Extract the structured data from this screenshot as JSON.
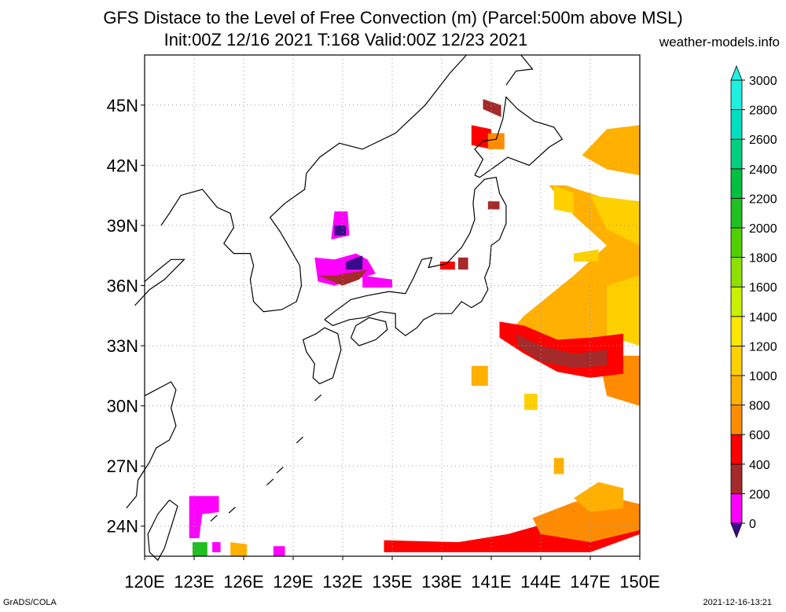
{
  "header": {
    "title_line1": "GFS Distace to the Level of Free Convection (m) (Parcel:500m above MSL)",
    "title_line2": "Init:00Z 12/16 2021 T:168 Valid:00Z 12/23 2021",
    "site": "weather-models.info"
  },
  "footer": {
    "left": "GrADS/COLA",
    "right": "2021-12-16-13:21"
  },
  "map": {
    "lon_range": [
      120,
      150
    ],
    "lat_range": [
      22.5,
      47.5
    ],
    "lon_ticks": [
      "120E",
      "123E",
      "126E",
      "129E",
      "132E",
      "135E",
      "138E",
      "141E",
      "144E",
      "147E",
      "150E"
    ],
    "lat_ticks": [
      "24N",
      "27N",
      "30N",
      "33N",
      "36N",
      "39N",
      "42N",
      "45N"
    ],
    "lon_values": [
      120,
      123,
      126,
      129,
      132,
      135,
      138,
      141,
      144,
      147,
      150
    ],
    "lat_values": [
      24,
      27,
      30,
      33,
      36,
      39,
      42,
      45
    ],
    "colorbar": {
      "labels": [
        "0",
        "200",
        "400",
        "600",
        "800",
        "1000",
        "1200",
        "1400",
        "1600",
        "1800",
        "2000",
        "2200",
        "2400",
        "2600",
        "2800",
        "3000"
      ],
      "colors": [
        "#3a0a8a",
        "#ff00ff",
        "#a52a2a",
        "#ff0000",
        "#ff8c00",
        "#ffb000",
        "#ffd000",
        "#ffe600",
        "#c8f000",
        "#8ee000",
        "#50d000",
        "#20c020",
        "#00c040",
        "#00d080",
        "#00e0c0",
        "#20f0e0"
      ]
    }
  }
}
